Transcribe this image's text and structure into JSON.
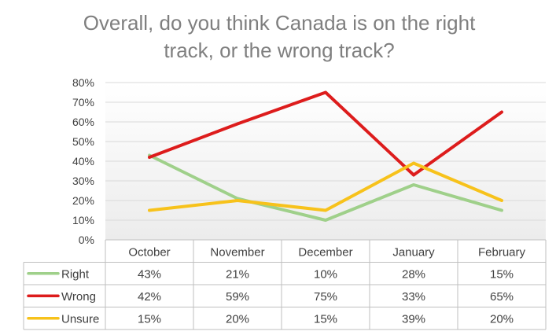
{
  "chart_data": {
    "type": "line",
    "title_lines": [
      "Overall, do you think Canada is on the right",
      "track, or the wrong track?"
    ],
    "categories": [
      "October",
      "November",
      "December",
      "January",
      "February"
    ],
    "ylim": [
      0,
      80
    ],
    "yticks": [
      "0%",
      "10%",
      "20%",
      "30%",
      "40%",
      "50%",
      "60%",
      "70%",
      "80%"
    ],
    "grid": true,
    "legend": "data-table-left",
    "series": [
      {
        "name": "Right",
        "color": "#9fd08a",
        "values": [
          43,
          21,
          10,
          28,
          15
        ],
        "labels": [
          "43%",
          "21%",
          "10%",
          "28%",
          "15%"
        ]
      },
      {
        "name": "Wrong",
        "color": "#dd1c1c",
        "values": [
          42,
          59,
          75,
          33,
          65
        ],
        "labels": [
          "42%",
          "59%",
          "75%",
          "33%",
          "65%"
        ]
      },
      {
        "name": "Unsure",
        "color": "#f7c21b",
        "values": [
          15,
          20,
          15,
          39,
          20
        ],
        "labels": [
          "15%",
          "20%",
          "15%",
          "39%",
          "20%"
        ]
      }
    ]
  }
}
